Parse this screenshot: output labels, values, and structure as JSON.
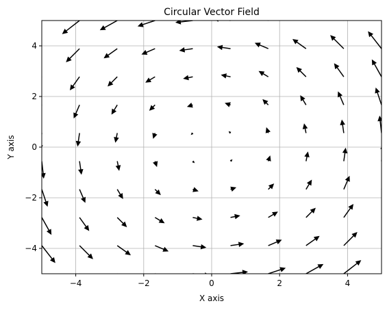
{
  "chart_data": {
    "type": "quiver",
    "title": "Circular Vector Field",
    "xlabel": "X axis",
    "ylabel": "Y axis",
    "xlim": [
      -5,
      5
    ],
    "ylim": [
      -5,
      5
    ],
    "xticks": [
      -4,
      -2,
      0,
      2,
      4
    ],
    "yticks": [
      -4,
      -2,
      0,
      2,
      4
    ],
    "tick_labels_x": [
      "−4",
      "−2",
      "0",
      "2",
      "4"
    ],
    "tick_labels_y": [
      "−4",
      "−2",
      "0",
      "2",
      "4"
    ],
    "grid": true,
    "field": {
      "u": "-y",
      "v": "x"
    },
    "grid_points": [
      -5,
      -3.889,
      -2.778,
      -1.667,
      -0.556,
      0.556,
      1.667,
      2.778,
      3.889,
      5
    ],
    "arrow_color": "#000000",
    "grid_color": "#b0b0b0"
  }
}
